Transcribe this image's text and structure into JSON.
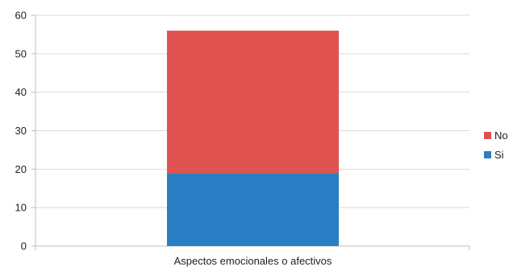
{
  "chart_data": {
    "type": "bar",
    "stacked": true,
    "categories": [
      "Aspectos emocionales o afectivos"
    ],
    "series": [
      {
        "name": "Si",
        "values": [
          19
        ],
        "color": "#2a7fc4"
      },
      {
        "name": "No",
        "values": [
          37
        ],
        "color": "#e05250"
      }
    ],
    "ylim": [
      0,
      60
    ],
    "yticks": [
      0,
      10,
      20,
      30,
      40,
      50,
      60
    ],
    "grid": true,
    "legend": "right",
    "title": "",
    "xlabel": "",
    "ylabel": ""
  }
}
